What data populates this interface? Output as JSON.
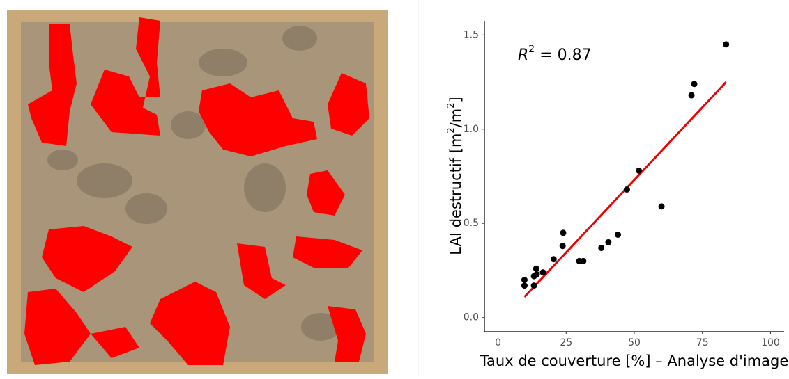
{
  "chart_data": {
    "type": "scatter",
    "annotation": {
      "text": "R",
      "sup": "2",
      "rest": " = 0.87"
    },
    "xlabel": "Taux de couverture [%] – Analyse d'image",
    "ylabel": {
      "a": "LAI destructif [m",
      "sup1": "2",
      "b": "/m",
      "sup2": "2",
      "c": "]"
    },
    "x": [
      9.7,
      9.7,
      13.2,
      13.2,
      14.2,
      14.0,
      16.5,
      20.4,
      23.7,
      23.9,
      29.8,
      31.3,
      37.9,
      40.5,
      44.0,
      47.3,
      51.7,
      60.0,
      71.0,
      72.0,
      83.7
    ],
    "series": [
      {
        "color": "#000000",
        "values": [
          0.2,
          0.17,
          0.17,
          0.22,
          0.23,
          0.26,
          0.24,
          0.31,
          0.38,
          0.45,
          0.3,
          0.3,
          0.37,
          0.4,
          0.44,
          0.68,
          0.78,
          0.59,
          1.18,
          1.24,
          1.45
        ]
      }
    ],
    "fit": {
      "color": "#ee0000",
      "x": [
        9.7,
        83.7
      ],
      "y": [
        0.11,
        1.25
      ]
    },
    "xlim": [
      -5,
      105
    ],
    "xticks": [
      0,
      25,
      50,
      75,
      100
    ],
    "ylim": [
      -0.075,
      1.575
    ],
    "yticks": [
      {
        "value": 0,
        "label": "0.0"
      },
      0.5,
      {
        "value": 1,
        "label": "1.0"
      },
      1.5
    ],
    "grid": false
  }
}
